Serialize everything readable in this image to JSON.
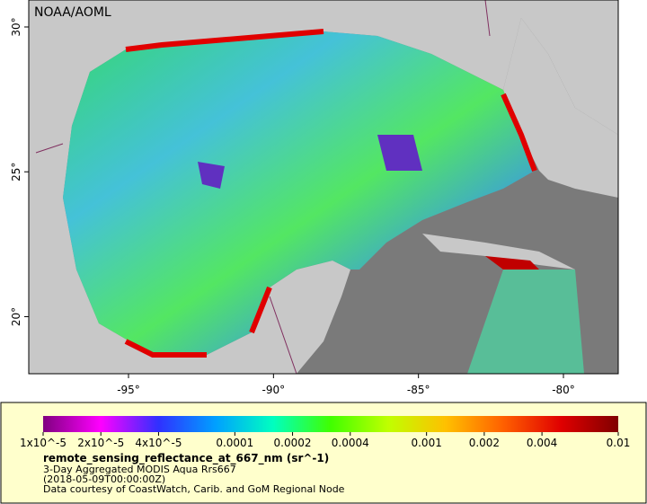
{
  "map": {
    "credit": "NOAA/AOML",
    "xlim": [
      -98.44,
      -78.11
    ],
    "ylim": [
      18.03,
      30.93
    ],
    "xticks": [
      {
        "value": -95,
        "label": "-95°"
      },
      {
        "value": -90,
        "label": "-90°"
      },
      {
        "value": -85,
        "label": "-85°"
      },
      {
        "value": -80,
        "label": "-80°"
      }
    ],
    "yticks": [
      {
        "value": 20,
        "label": "20°"
      },
      {
        "value": 25,
        "label": "25°"
      },
      {
        "value": 30,
        "label": "30°"
      }
    ]
  },
  "legend": {
    "log": true,
    "lim": [
      1e-05,
      0.01
    ],
    "colors": [
      "#800080",
      "#ff00ff",
      "#3030ff",
      "#00a0ff",
      "#00ffc0",
      "#40ff00",
      "#c0ff00",
      "#ffc000",
      "#ff6000",
      "#e00000",
      "#800000"
    ],
    "ticks": [
      {
        "value": 1e-05,
        "label": "1x10^-5"
      },
      {
        "value": 2e-05,
        "label": "2x10^-5"
      },
      {
        "value": 4e-05,
        "label": "4x10^-5"
      },
      0.0001,
      0.0002,
      0.0004,
      0.001,
      0.002,
      0.004,
      0.01
    ],
    "variable": "remote_sensing_reflectance_at_667_nm (sr^-1)",
    "lines": [
      "3-Day Aggregated MODIS Aqua Rrs667",
      "(2018-05-09T00:00:00Z)",
      "Data courtesy of CoastWatch, Carib. and GoM Regional Node"
    ]
  }
}
